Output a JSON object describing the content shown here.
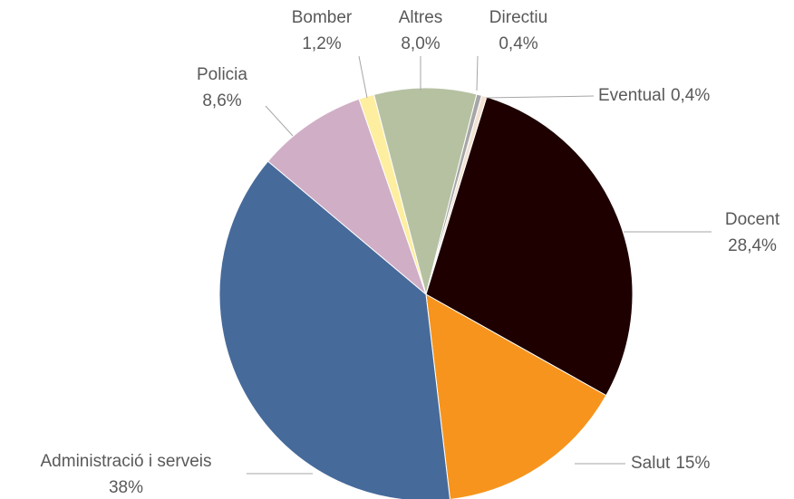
{
  "chart_data": {
    "type": "pie",
    "categories": [
      "Directiu",
      "Eventual",
      "Docent",
      "Salut",
      "Administració i serveis",
      "Policia",
      "Bomber",
      "Altres"
    ],
    "values": [
      0.4,
      0.4,
      28.4,
      15,
      38,
      8.6,
      1.2,
      8.0
    ],
    "value_labels": [
      "0,4%",
      "0,4%",
      "28,4%",
      "15%",
      "38%",
      "8,6%",
      "1,2%",
      "8,0%"
    ],
    "colors": [
      "#a6a6a6",
      "#f3e2d3",
      "#1e0000",
      "#f7941d",
      "#466a9a",
      "#d0aec6",
      "#fdeea0",
      "#b6c1a2"
    ]
  }
}
